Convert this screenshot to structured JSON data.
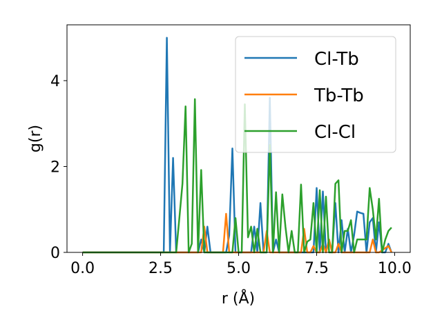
{
  "chart_data": {
    "type": "line",
    "xlabel": "r (Å)",
    "ylabel": "g(r)",
    "xlim": [
      -0.5,
      10.5
    ],
    "ylim": [
      0,
      5.3
    ],
    "xticks": [
      0.0,
      2.5,
      5.0,
      7.5,
      10.0
    ],
    "xtick_labels": [
      "0.0",
      "2.5",
      "5.0",
      "7.5",
      "10.0"
    ],
    "yticks": [
      0,
      2,
      4
    ],
    "ytick_labels": [
      "0",
      "2",
      "4"
    ],
    "grid": false,
    "legend_position": "top-right",
    "series": [
      {
        "name": "Cl-Tb",
        "color": "#1f77b4",
        "x": [
          0.0,
          2.5,
          2.6,
          2.7,
          2.8,
          2.9,
          3.0,
          3.7,
          3.8,
          3.9,
          4.0,
          4.1,
          4.6,
          4.7,
          4.8,
          4.9,
          5.4,
          5.5,
          5.6,
          5.7,
          5.8,
          5.9,
          6.0,
          6.1,
          6.2,
          6.3,
          7.4,
          7.5,
          7.6,
          7.7,
          7.8,
          7.9,
          8.0,
          8.1,
          8.2,
          8.3,
          8.4,
          8.5,
          8.6,
          8.7,
          8.8,
          8.9,
          9.0,
          9.1,
          9.2,
          9.3,
          9.4,
          9.5,
          9.6,
          9.7,
          9.8,
          9.9
        ],
        "y": [
          0.0,
          0.0,
          0.0,
          5.0,
          0.0,
          2.2,
          0.0,
          0.0,
          0.3,
          0.0,
          0.6,
          0.0,
          0.0,
          0.4,
          2.42,
          0.0,
          0.0,
          0.6,
          0.0,
          1.15,
          0.0,
          0.0,
          3.6,
          0.0,
          0.3,
          0.0,
          0.0,
          1.5,
          0.0,
          1.42,
          0.0,
          0.3,
          0.0,
          1.15,
          0.0,
          0.75,
          0.0,
          0.55,
          0.0,
          0.4,
          0.95,
          0.92,
          0.9,
          0.0,
          0.7,
          0.8,
          0.0,
          0.7,
          0.0,
          0.0,
          0.2,
          0.0
        ]
      },
      {
        "name": "Tb-Tb",
        "color": "#ff7f0e",
        "x": [
          0.0,
          3.8,
          3.9,
          4.0,
          4.5,
          4.6,
          4.7,
          5.8,
          5.9,
          6.0,
          6.1,
          7.0,
          7.1,
          7.2,
          7.3,
          7.4,
          7.5,
          7.6,
          7.7,
          7.8,
          7.9,
          8.0,
          8.1,
          8.2,
          8.3,
          8.4,
          9.2,
          9.3,
          9.4,
          9.5,
          9.8,
          9.9
        ],
        "y": [
          0.0,
          0.0,
          0.6,
          0.0,
          0.0,
          0.9,
          0.0,
          0.0,
          0.5,
          0.0,
          0.0,
          0.0,
          0.55,
          0.0,
          0.0,
          0.15,
          0.0,
          0.0,
          0.2,
          0.0,
          0.3,
          0.0,
          0.0,
          0.2,
          0.0,
          0.0,
          0.0,
          0.3,
          0.0,
          0.0,
          0.15,
          0.0
        ]
      },
      {
        "name": "Cl-Cl",
        "color": "#2ca02c",
        "x": [
          0.0,
          3.0,
          3.1,
          3.2,
          3.3,
          3.4,
          3.5,
          3.6,
          3.7,
          3.8,
          3.9,
          4.0,
          4.8,
          4.9,
          5.0,
          5.1,
          5.2,
          5.3,
          5.4,
          5.5,
          5.6,
          5.7,
          5.8,
          5.9,
          6.0,
          6.1,
          6.2,
          6.3,
          6.4,
          6.5,
          6.6,
          6.7,
          6.8,
          6.9,
          7.0,
          7.1,
          7.2,
          7.3,
          7.4,
          7.5,
          7.6,
          7.7,
          7.8,
          7.9,
          8.0,
          8.1,
          8.2,
          8.3,
          8.4,
          8.5,
          8.6,
          8.7,
          8.8,
          8.9,
          9.0,
          9.1,
          9.2,
          9.3,
          9.4,
          9.5,
          9.6,
          9.7,
          9.8,
          9.9
        ],
        "y": [
          0.0,
          0.0,
          0.8,
          1.6,
          3.4,
          0.0,
          0.2,
          3.57,
          0.0,
          1.92,
          0.0,
          0.0,
          0.0,
          0.8,
          0.0,
          0.0,
          3.45,
          0.35,
          0.6,
          0.0,
          0.55,
          0.0,
          0.0,
          0.0,
          2.5,
          0.0,
          1.4,
          0.0,
          1.35,
          0.6,
          0.0,
          0.5,
          0.0,
          0.0,
          1.58,
          0.0,
          0.25,
          0.3,
          1.15,
          0.0,
          1.45,
          0.0,
          1.3,
          0.0,
          0.0,
          1.6,
          1.68,
          0.0,
          0.5,
          0.5,
          0.75,
          0.0,
          0.3,
          0.3,
          0.3,
          0.3,
          1.5,
          1.0,
          0.3,
          1.25,
          0.0,
          0.3,
          0.5,
          0.58
        ]
      }
    ]
  }
}
